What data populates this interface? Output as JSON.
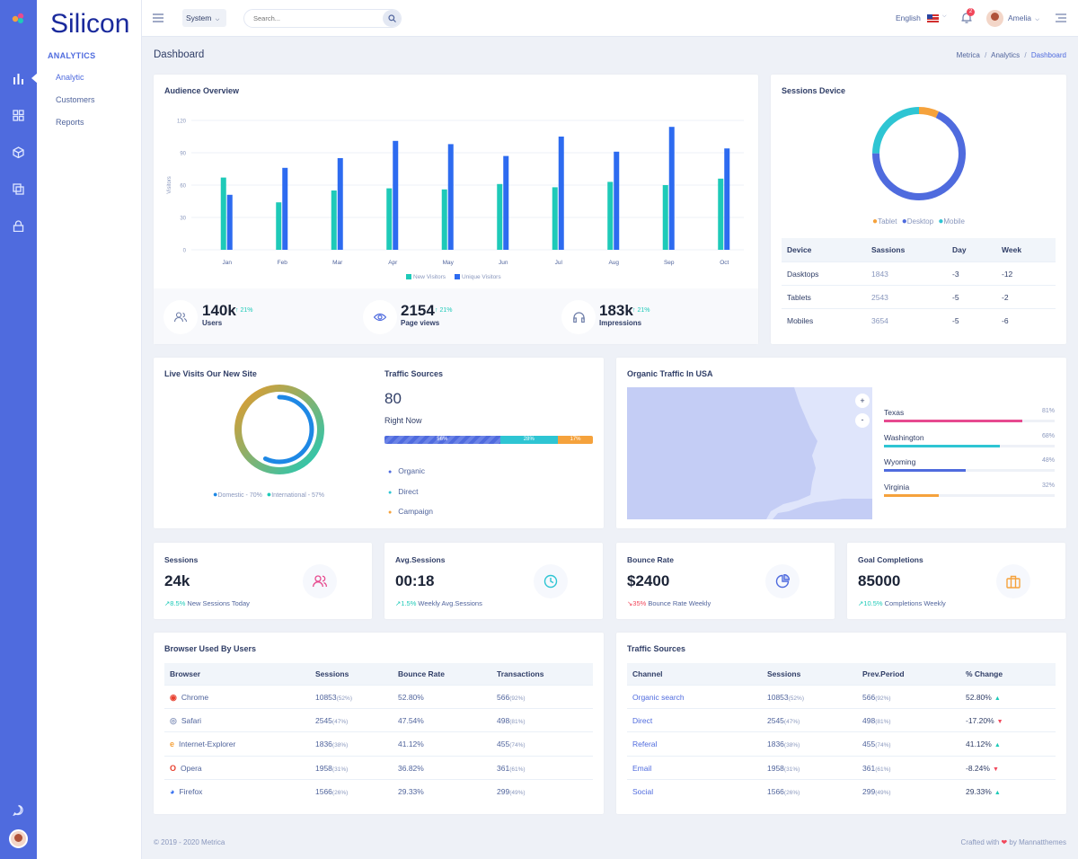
{
  "brand": "Silicon",
  "subnav": {
    "section": "ANALYTICS",
    "items": [
      "Analytic",
      "Customers",
      "Reports"
    ]
  },
  "topbar": {
    "system": "System",
    "search_placeholder": "Search...",
    "language": "English",
    "badge": "2",
    "user": "Amelia"
  },
  "page": {
    "title": "Dashboard",
    "breadcrumb": [
      "Metrica",
      "Analytics",
      "Dashboard"
    ]
  },
  "audience": {
    "title": "Audience Overview",
    "ylabel": "Visitors",
    "legend": [
      "New Visitors",
      "Unique Visitors"
    ],
    "stats": [
      {
        "value": "140k",
        "change": "21%",
        "label": "Users"
      },
      {
        "value": "2154",
        "change": "21%",
        "label": "Page views"
      },
      {
        "value": "183k",
        "change": "21%",
        "label": "Impressions"
      }
    ]
  },
  "chart_data": {
    "type": "bar",
    "categories": [
      "Jan",
      "Feb",
      "Mar",
      "Apr",
      "May",
      "Jun",
      "Jul",
      "Aug",
      "Sep",
      "Oct"
    ],
    "series": [
      {
        "name": "New Visitors",
        "values": [
          67,
          44,
          55,
          57,
          56,
          61,
          58,
          63,
          60,
          66
        ],
        "color": "#1ecab8"
      },
      {
        "name": "Unique Visitors",
        "values": [
          51,
          76,
          85,
          101,
          98,
          87,
          105,
          91,
          114,
          94
        ],
        "color": "#2d6bf0"
      }
    ],
    "xlabel": "",
    "ylabel": "Visitors",
    "ylim": [
      0,
      120
    ],
    "yticks": [
      0,
      30,
      60,
      90,
      120
    ]
  },
  "sessions_device": {
    "title": "Sessions Device",
    "legend": [
      {
        "label": "Tablet",
        "color": "#f5a23c",
        "pct": 7
      },
      {
        "label": "Desktop",
        "color": "#4f6bde",
        "pct": 68
      },
      {
        "label": "Mobile",
        "color": "#2ec5d3",
        "pct": 25
      }
    ],
    "headers": [
      "Device",
      "Sassions",
      "Day",
      "Week"
    ],
    "rows": [
      [
        "Dasktops",
        "1843",
        "-3",
        "-12"
      ],
      [
        "Tablets",
        "2543",
        "-5",
        "-2"
      ],
      [
        "Mobiles",
        "3654",
        "-5",
        "-6"
      ]
    ]
  },
  "live": {
    "title": "Live Visits Our New Site",
    "legend": [
      "Domestic - 70%",
      "International - 57%"
    ]
  },
  "traffic_now": {
    "title": "Traffic Sources",
    "value": "80",
    "label": "Right Now",
    "bars": [
      {
        "label": "56%",
        "pct": 56,
        "color": "#4f6bde"
      },
      {
        "label": "28%",
        "pct": 28,
        "color": "#2ec5d3"
      },
      {
        "label": "17%",
        "pct": 17,
        "color": "#f5a23c"
      }
    ],
    "legend": [
      {
        "label": "Organic",
        "color": "#4f6bde"
      },
      {
        "label": "Direct",
        "color": "#2ec5d3"
      },
      {
        "label": "Campaign",
        "color": "#f5a23c"
      }
    ]
  },
  "organic": {
    "title": "Organic Traffic In USA",
    "zoom_in": "+",
    "zoom_out": "-",
    "states": [
      {
        "name": "Texas",
        "pct": "81%",
        "fill": 81,
        "color": "#e74a8f"
      },
      {
        "name": "Washington",
        "pct": "68%",
        "fill": 68,
        "color": "#2ec5d3"
      },
      {
        "name": "Wyoming",
        "pct": "48%",
        "fill": 48,
        "color": "#4f6bde"
      },
      {
        "name": "Virginia",
        "pct": "32%",
        "fill": 32,
        "color": "#f5a23c"
      }
    ]
  },
  "kpis": [
    {
      "title": "Sessions",
      "value": "24k",
      "change": "8.5%",
      "note": "New Sessions Today",
      "trend": "up",
      "color": "#e74a8f"
    },
    {
      "title": "Avg.Sessions",
      "value": "00:18",
      "change": "1.5%",
      "note": "Weekly Avg.Sessions",
      "trend": "up",
      "color": "#2ec5d3"
    },
    {
      "title": "Bounce Rate",
      "value": "$2400",
      "change": "35%",
      "note": "Bounce Rate Weekly",
      "trend": "down",
      "color": "#4f6bde"
    },
    {
      "title": "Goal Completions",
      "value": "85000",
      "change": "10.5%",
      "note": "Completions Weekly",
      "trend": "up",
      "color": "#f5a23c"
    }
  ],
  "browsers": {
    "title": "Browser Used By Users",
    "headers": [
      "Browser",
      "Sessions",
      "Bounce Rate",
      "Transactions"
    ],
    "rows": [
      {
        "icon": "chrome-icon",
        "color": "#e8402f",
        "name": "Chrome",
        "sessions": "10853",
        "spct": "(52%)",
        "bounce": "52.80%",
        "trans": "566",
        "tpct": "(92%)"
      },
      {
        "icon": "safari-icon",
        "color": "#8997bd",
        "name": "Safari",
        "sessions": "2545",
        "spct": "(47%)",
        "bounce": "47.54%",
        "trans": "498",
        "tpct": "(81%)"
      },
      {
        "icon": "internet-explorer-icon",
        "color": "#f5a23c",
        "name": "Internet-Explorer",
        "sessions": "1836",
        "spct": "(38%)",
        "bounce": "41.12%",
        "trans": "455",
        "tpct": "(74%)"
      },
      {
        "icon": "opera-icon",
        "color": "#e8402f",
        "name": "Opera",
        "sessions": "1958",
        "spct": "(31%)",
        "bounce": "36.82%",
        "trans": "361",
        "tpct": "(61%)"
      },
      {
        "icon": "firefox-icon",
        "color": "#2d6bf0",
        "name": "Firefox",
        "sessions": "1566",
        "spct": "(26%)",
        "bounce": "29.33%",
        "trans": "299",
        "tpct": "(49%)"
      }
    ]
  },
  "traffic_table": {
    "title": "Traffic Sources",
    "headers": [
      "Channel",
      "Sessions",
      "Prev.Period",
      "% Change"
    ],
    "rows": [
      {
        "name": "Organic search",
        "sessions": "10853",
        "spct": "(52%)",
        "prev": "566",
        "ppct": "(92%)",
        "change": "52.80%",
        "trend": "up"
      },
      {
        "name": "Direct",
        "sessions": "2545",
        "spct": "(47%)",
        "prev": "498",
        "ppct": "(81%)",
        "change": "-17.20%",
        "trend": "down"
      },
      {
        "name": "Referal",
        "sessions": "1836",
        "spct": "(38%)",
        "prev": "455",
        "ppct": "(74%)",
        "change": "41.12%",
        "trend": "up"
      },
      {
        "name": "Email",
        "sessions": "1958",
        "spct": "(31%)",
        "prev": "361",
        "ppct": "(61%)",
        "change": "-8.24%",
        "trend": "down"
      },
      {
        "name": "Social",
        "sessions": "1566",
        "spct": "(26%)",
        "prev": "299",
        "ppct": "(49%)",
        "change": "29.33%",
        "trend": "up"
      }
    ]
  },
  "footer": {
    "copyright": "© 2019 - 2020 Metrica",
    "crafted": "Crafted with",
    "heart": "❤",
    "by": "by Mannatthemes"
  }
}
